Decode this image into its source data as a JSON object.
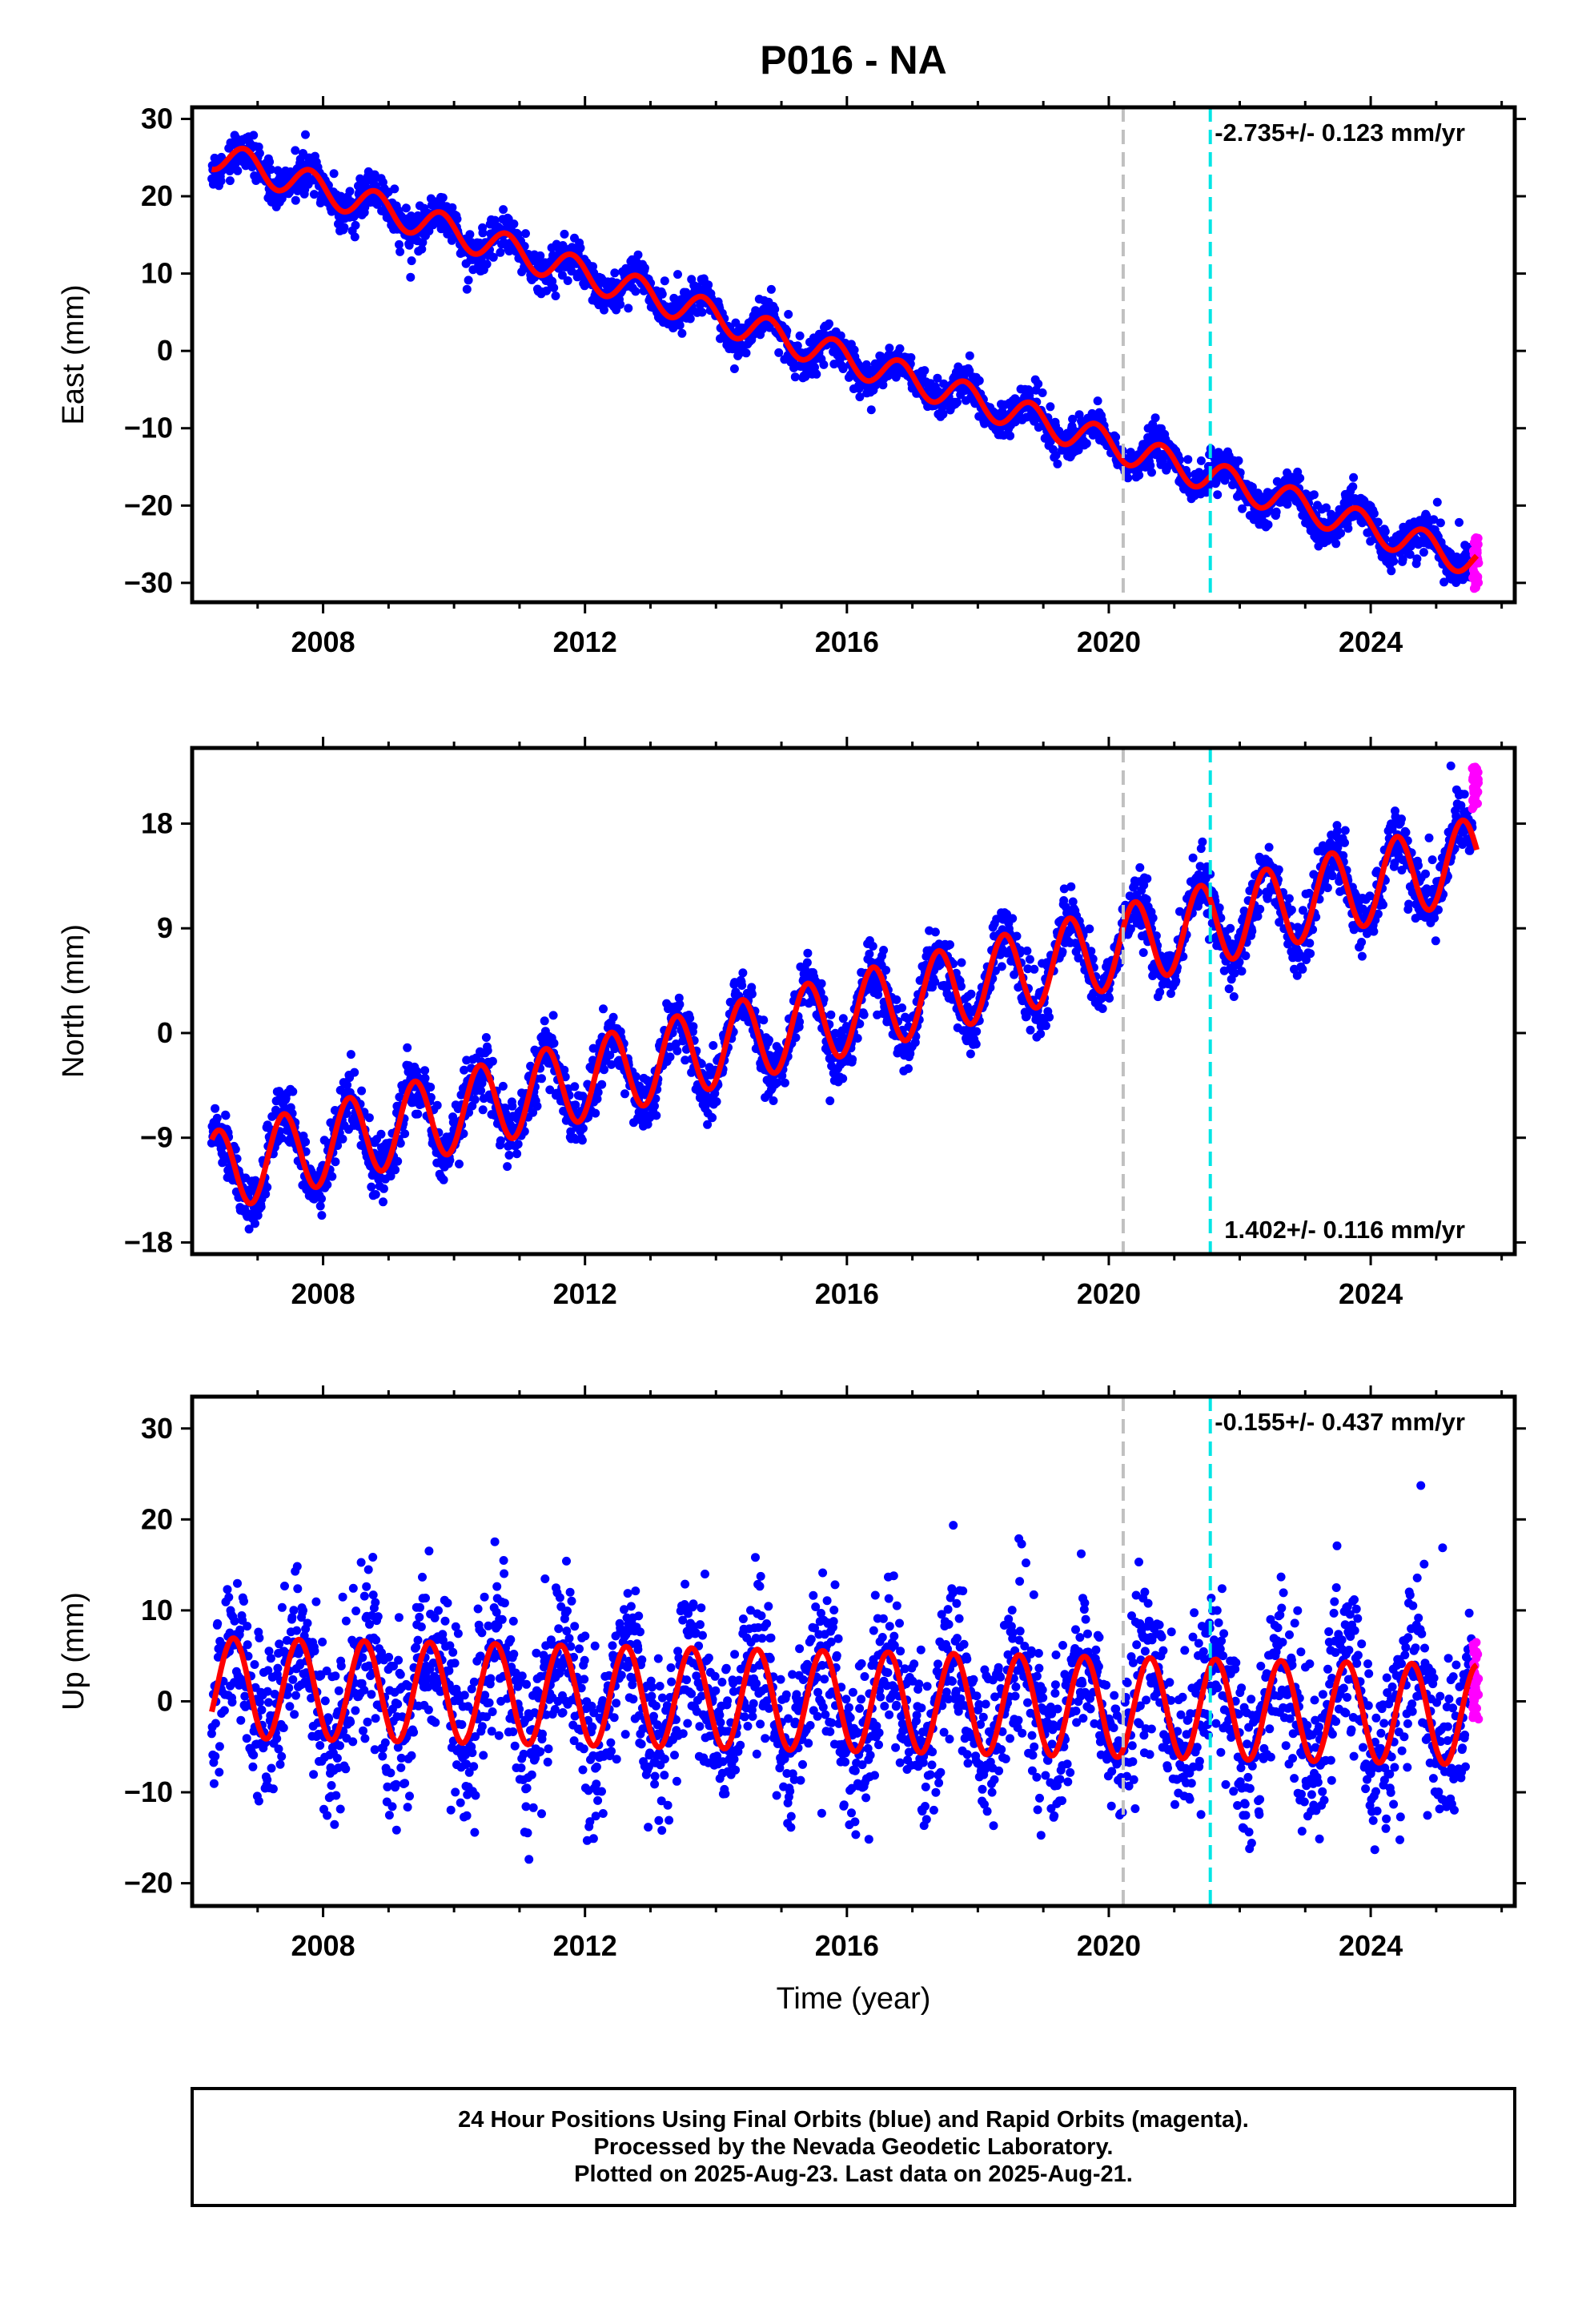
{
  "title": "P016 - NA",
  "xlabel": "Time (year)",
  "colors": {
    "final": "#0000ff",
    "rapid": "#ff00ff",
    "model": "#ff0000",
    "gray_line": "#c0c0c0",
    "cyan_line": "#00e5e5"
  },
  "vlines": [
    2020.22,
    2021.55
  ],
  "x_ticks": [
    "2008",
    "2012",
    "2016",
    "2020",
    "2024"
  ],
  "chart_data": [
    {
      "type": "scatter",
      "ylabel": "East (mm)",
      "rate_label": "-2.735+/- 0.123 mm/yr",
      "xlim": [
        2006.0,
        2026.2
      ],
      "ylim": [
        -32.5,
        31.5
      ],
      "yticks": [
        "30",
        "20",
        "10",
        "0",
        "−10",
        "−20",
        "−30"
      ],
      "model": {
        "t0": 2006.3,
        "t1": 2025.62,
        "y0": 25.5,
        "rate": -2.735,
        "amp": 2.0,
        "phase": 0.55
      },
      "series": [
        {
          "name": "Final Orbits",
          "x_range": [
            2006.3,
            2025.55
          ],
          "noise_mm": 1.2
        },
        {
          "name": "Rapid Orbits",
          "x_range": [
            2025.55,
            2025.65
          ],
          "y_range": [
            -31,
            -24
          ]
        }
      ]
    },
    {
      "type": "scatter",
      "ylabel": "North (mm)",
      "rate_label": "1.402+/- 0.116 mm/yr",
      "xlim": [
        2006.0,
        2026.2
      ],
      "ylim": [
        -19.0,
        24.5
      ],
      "yticks": [
        "18",
        "9",
        "0",
        "−9",
        "−18"
      ],
      "model": {
        "t0": 2006.3,
        "t1": 2025.62,
        "y0": -12.0,
        "rate": 1.402,
        "amp": 3.5,
        "phase": 0.15
      },
      "series": [
        {
          "name": "Final Orbits",
          "x_range": [
            2006.3,
            2025.55
          ],
          "noise_mm": 1.3
        },
        {
          "name": "Rapid Orbits",
          "x_range": [
            2025.55,
            2025.65
          ],
          "y_range": [
            19,
            23
          ]
        }
      ]
    },
    {
      "type": "scatter",
      "ylabel": "Up (mm)",
      "rate_label": "-0.155+/- 0.437 mm/yr",
      "xlim": [
        2006.0,
        2026.2
      ],
      "ylim": [
        -22.5,
        33.5
      ],
      "yticks": [
        "30",
        "20",
        "10",
        "0",
        "−10",
        "−20"
      ],
      "model": {
        "t0": 2006.3,
        "t1": 2025.62,
        "y0": 1.5,
        "rate": -0.155,
        "amp": 5.5,
        "phase": 0.38
      },
      "series": [
        {
          "name": "Final Orbits",
          "x_range": [
            2006.3,
            2025.55
          ],
          "noise_mm": 4.5
        },
        {
          "name": "Rapid Orbits",
          "x_range": [
            2025.55,
            2025.65
          ],
          "y_range": [
            -2,
            7
          ]
        }
      ]
    }
  ],
  "footer": {
    "line1": "24 Hour Positions Using Final Orbits (blue) and Rapid Orbits (magenta).",
    "line2": "Processed by the Nevada Geodetic Laboratory.",
    "line3": "Plotted on 2025-Aug-23. Last data on 2025-Aug-21."
  }
}
